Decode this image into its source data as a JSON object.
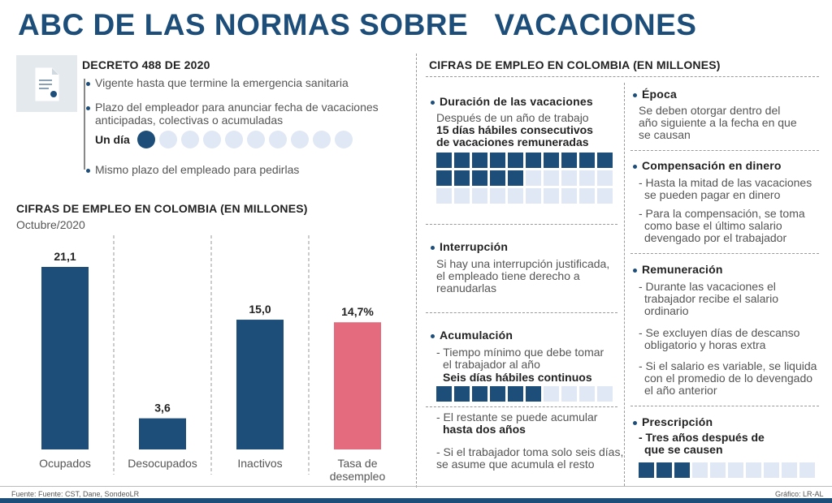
{
  "title": "ABC DE LAS NORMAS SOBRE   VACACIONES",
  "decreto": {
    "header": "DECRETO 488 DE 2020",
    "item1": "Vigente hasta que termine la emergencia sanitaria",
    "item2a": "Plazo del empleador para anunciar fecha de vacaciones",
    "item2b": "anticipadas, colectivas o acumuladas",
    "un_dia": "Un día",
    "item3": "Mismo plazo del empleado para pedirlas",
    "days_total": 10,
    "days_filled": 1
  },
  "chart_data": {
    "type": "bar",
    "title": "CIFRAS DE EMPLEO EN COLOMBIA (EN MILLONES)",
    "subtitle": "Octubre/2020",
    "categories": [
      "Ocupados",
      "Desocupados",
      "Inactivos",
      "Tasa de desempleo"
    ],
    "category_lines": [
      [
        "Ocupados"
      ],
      [
        "Desocupados"
      ],
      [
        "Inactivos"
      ],
      [
        "Tasa de",
        "desempleo"
      ]
    ],
    "values": [
      21.1,
      3.6,
      15.0,
      14.7
    ],
    "value_labels": [
      "21,1",
      "3,6",
      "15,0",
      "14,7%"
    ],
    "colors": [
      "#1d4e7a",
      "#1d4e7a",
      "#1d4e7a",
      "#e36b7d"
    ],
    "ylim": [
      0,
      21.1
    ]
  },
  "right_header": "CIFRAS DE EMPLEO EN COLOMBIA (EN MILLONES)",
  "duracion": {
    "title": "Duración de las vacaciones",
    "l1": "Después de un año de trabajo",
    "l2": "15 días hábiles consecutivos",
    "l3": "de vacaciones remuneradas",
    "filled": 15,
    "total": 30
  },
  "interrupcion": {
    "title": "Interrupción",
    "l1": "Si hay una interrupción justificada,",
    "l2": "el empleado tiene derecho a",
    "l3": "reanudarlas"
  },
  "acumulacion": {
    "title": "Acumulación",
    "l1": "- Tiempo mínimo que debe tomar",
    "l2": "el trabajador al año",
    "l3": "Seis días hábiles continuos",
    "filled": 6,
    "total": 10,
    "l4": "- El restante se puede acumular",
    "l5": "hasta dos años",
    "l6": "- Si el trabajador toma solo seis días,",
    "l7": "se asume que acumula el resto"
  },
  "epoca": {
    "title": "Época",
    "l1": "Se deben otorgar dentro del",
    "l2": "año siguiente a la fecha en que",
    "l3": "se causan"
  },
  "compensacion": {
    "title": "Compensación en dinero",
    "l1": "- Hasta la mitad de las vacaciones",
    "l2": "se pueden pagar en dinero",
    "l3": "- Para la compensación, se toma",
    "l4": "como base el último salario",
    "l5": "devengado por el trabajador"
  },
  "remuneracion": {
    "title": "Remuneración",
    "l1": "- Durante las vacaciones el",
    "l2": "trabajador recibe el salario",
    "l3": "ordinario",
    "l4": "- Se excluyen días de descanso",
    "l5": "obligatorio y horas extra",
    "l6": "- Si el salario es variable, se liquida",
    "l7": "con el promedio de lo devengado",
    "l8": "el año anterior"
  },
  "prescripcion": {
    "title": "Prescripción",
    "l1": "- Tres años después de",
    "l2": "que se causen",
    "filled": 3,
    "total": 10
  },
  "footer": {
    "source": "Fuente: Fuente: CST, Dane, SondeoLR",
    "credit": "Gráfico: LR-AL"
  }
}
